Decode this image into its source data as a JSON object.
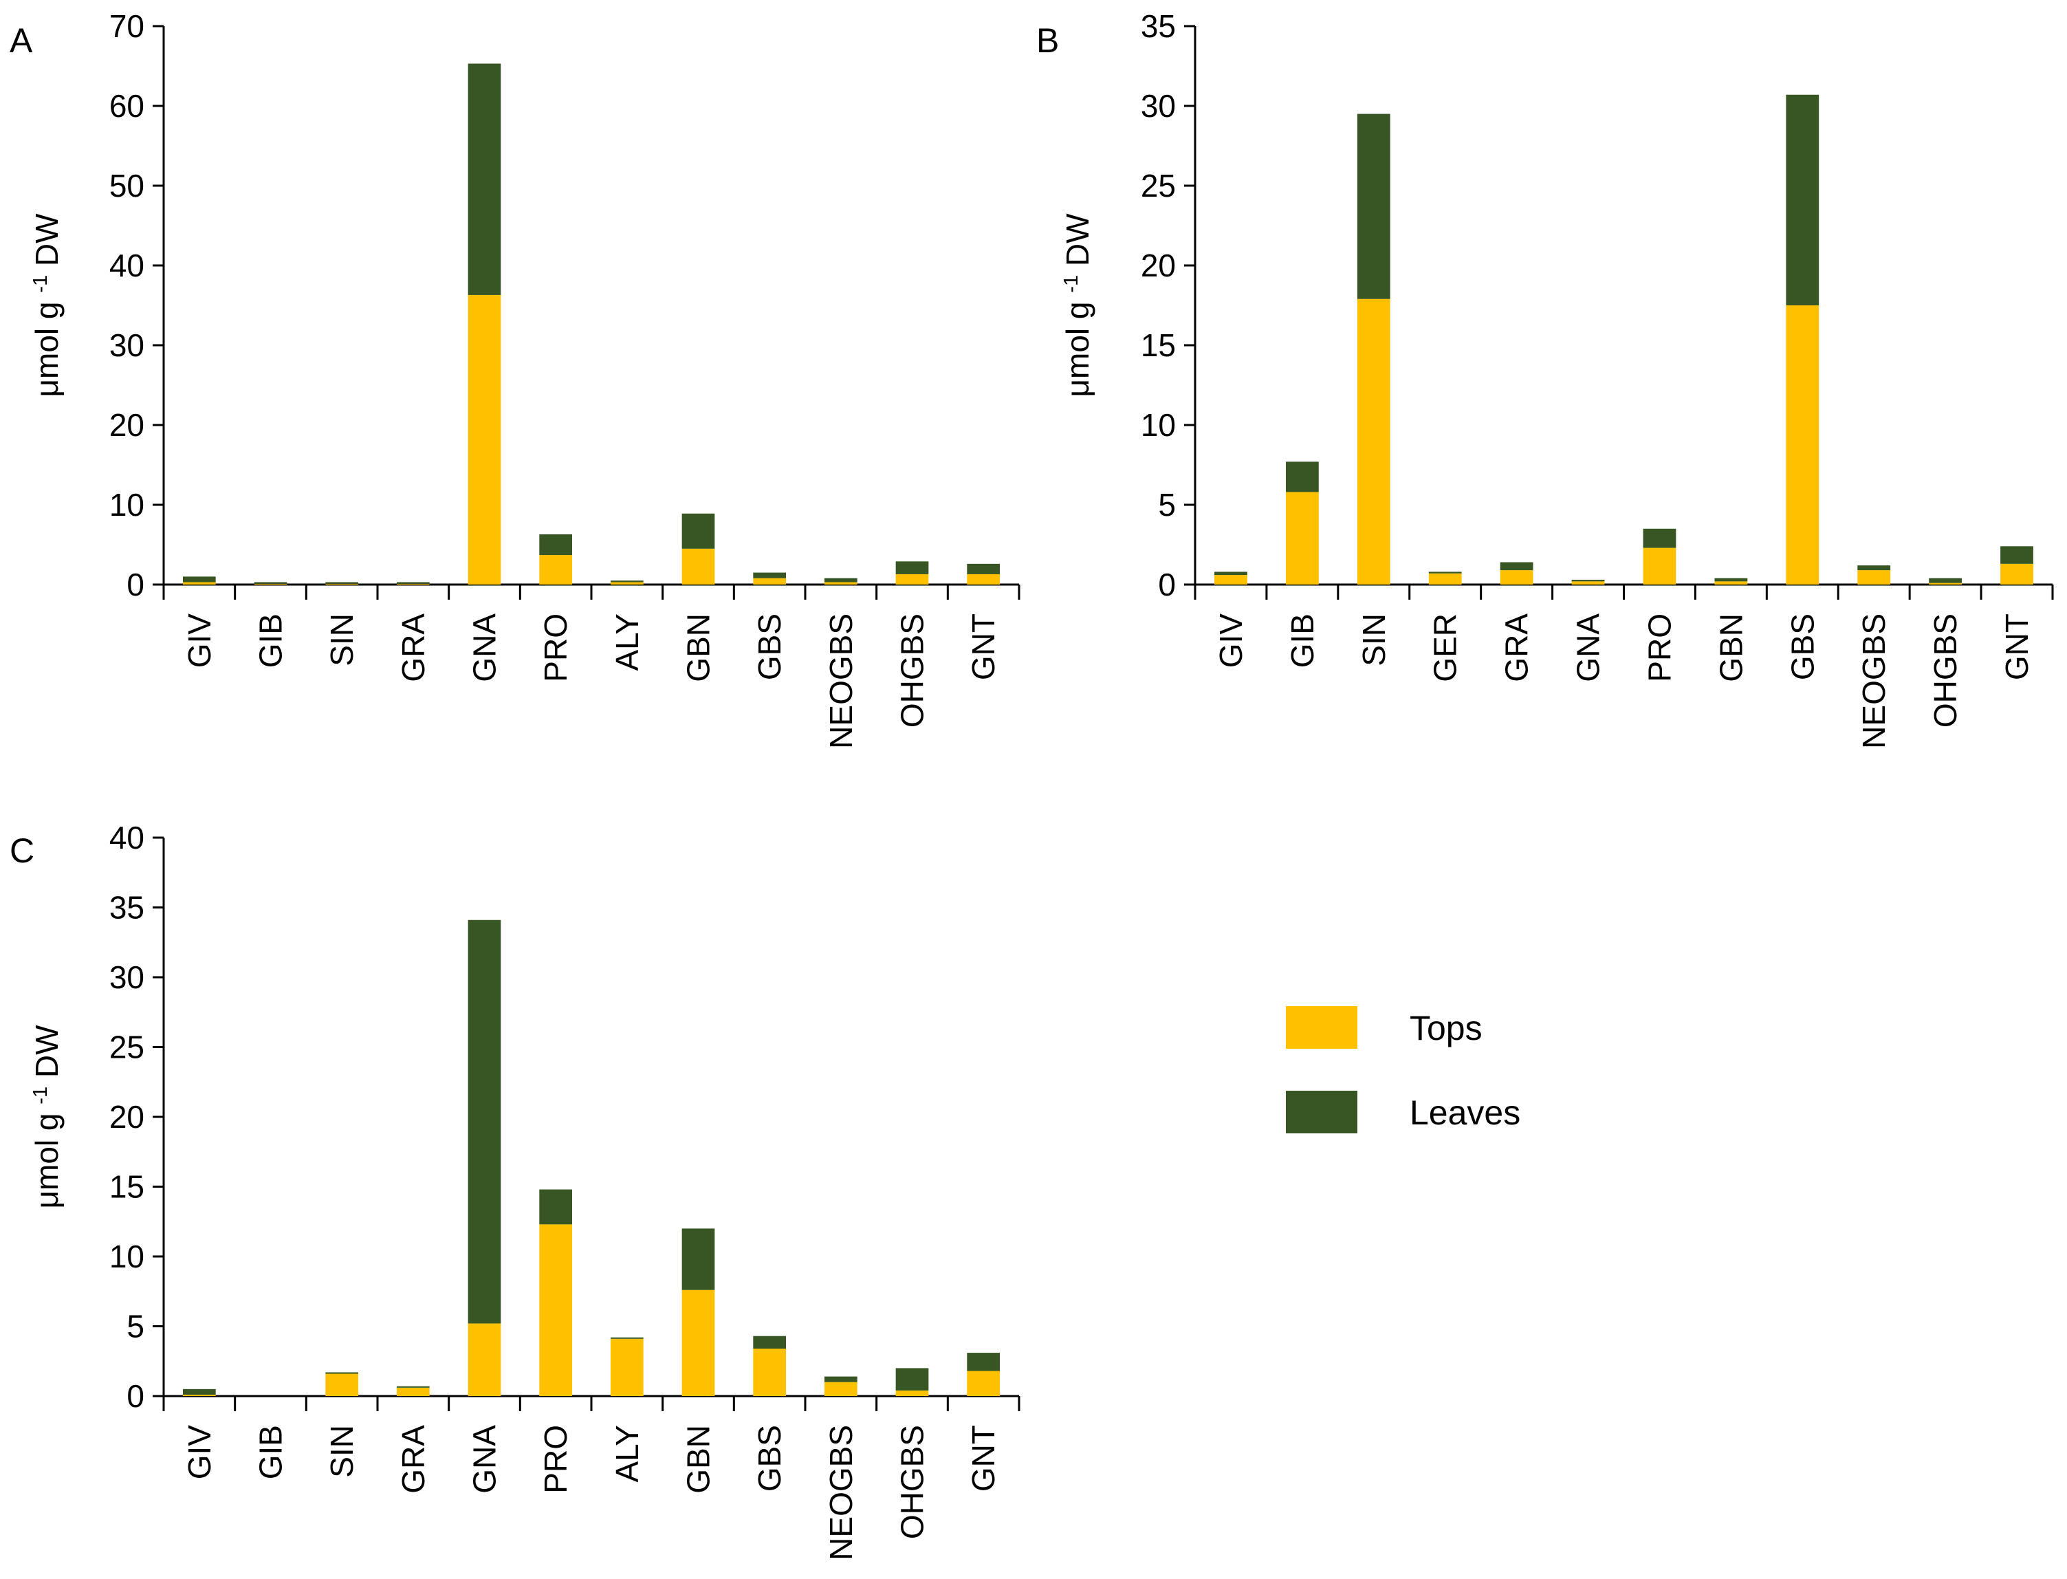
{
  "colors": {
    "tops": "#FFC000",
    "leaves": "#375623",
    "axis": "#000000"
  },
  "legend": {
    "tops_label": "Tops",
    "leaves_label": "Leaves"
  },
  "chart_data": [
    {
      "panel": "A",
      "type": "bar",
      "stacked": true,
      "ylabel_main": "μmol g",
      "ylabel_sup": "-1",
      "ylabel_tail": " DW",
      "ylim": [
        0,
        70
      ],
      "yticks": [
        0,
        10,
        20,
        30,
        40,
        50,
        60,
        70
      ],
      "categories": [
        "GIV",
        "GIB",
        "SIN",
        "GRA",
        "GNA",
        "PRO",
        "ALY",
        "GBN",
        "GBS",
        "NEOGBS",
        "OHGBS",
        "GNT"
      ],
      "series": [
        {
          "name": "Tops",
          "values": [
            0.3,
            0.1,
            0.1,
            0.1,
            36.3,
            3.7,
            0.3,
            4.5,
            0.8,
            0.3,
            1.3,
            1.3
          ]
        },
        {
          "name": "Leaves",
          "values": [
            0.7,
            0.2,
            0.2,
            0.2,
            29.0,
            2.6,
            0.2,
            4.4,
            0.7,
            0.5,
            1.6,
            1.3
          ]
        }
      ]
    },
    {
      "panel": "B",
      "type": "bar",
      "stacked": true,
      "ylabel_main": "μmol g",
      "ylabel_sup": "-1",
      "ylabel_tail": " DW",
      "ylim": [
        0,
        35
      ],
      "yticks": [
        0,
        5,
        10,
        15,
        20,
        25,
        30,
        35
      ],
      "categories": [
        "GIV",
        "GIB",
        "SIN",
        "GER",
        "GRA",
        "GNA",
        "PRO",
        "GBN",
        "GBS",
        "NEOGBS",
        "OHGBS",
        "GNT"
      ],
      "series": [
        {
          "name": "Tops",
          "values": [
            0.6,
            5.8,
            17.9,
            0.7,
            0.9,
            0.2,
            2.3,
            0.2,
            17.5,
            0.9,
            0.1,
            1.3
          ]
        },
        {
          "name": "Leaves",
          "values": [
            0.2,
            1.9,
            11.6,
            0.1,
            0.5,
            0.1,
            1.2,
            0.2,
            13.2,
            0.3,
            0.3,
            1.1
          ]
        }
      ]
    },
    {
      "panel": "C",
      "type": "bar",
      "stacked": true,
      "ylabel_main": "μmol g",
      "ylabel_sup": "-1",
      "ylabel_tail": " DW",
      "ylim": [
        0,
        40
      ],
      "yticks": [
        0,
        5,
        10,
        15,
        20,
        25,
        30,
        35,
        40
      ],
      "categories": [
        "GIV",
        "GIB",
        "SIN",
        "GRA",
        "GNA",
        "PRO",
        "ALY",
        "GBN",
        "GBS",
        "NEOGBS",
        "OHGBS",
        "GNT"
      ],
      "series": [
        {
          "name": "Tops",
          "values": [
            0.1,
            0.0,
            1.6,
            0.6,
            5.2,
            12.3,
            4.1,
            7.6,
            3.4,
            1.0,
            0.4,
            1.8
          ]
        },
        {
          "name": "Leaves",
          "values": [
            0.4,
            0.0,
            0.1,
            0.1,
            28.9,
            2.5,
            0.1,
            4.4,
            0.9,
            0.4,
            1.6,
            1.3
          ]
        }
      ]
    }
  ]
}
